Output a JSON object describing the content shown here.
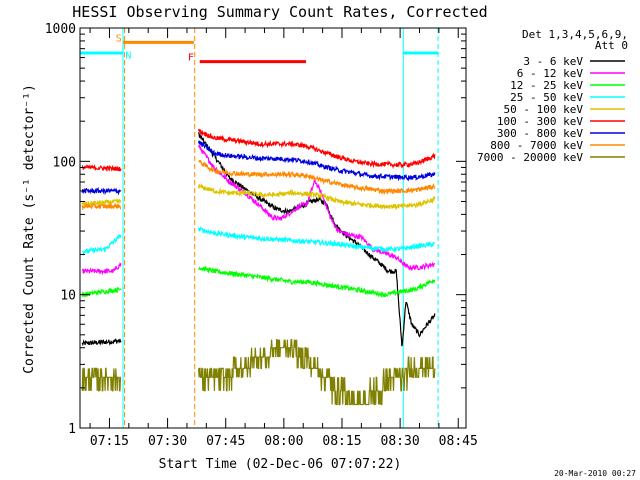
{
  "chart_data": {
    "type": "line",
    "title": "HESSI Observing Summary Count Rates, Corrected",
    "xlabel": "Start Time (02-Dec-06 07:07:22)",
    "ylabel": "Corrected Count Rate (s⁻¹ detector⁻¹)",
    "yscale": "log",
    "ylim": [
      1,
      1000
    ],
    "xlim": [
      427.4,
      527.0
    ],
    "x_unit": "minutes after 00:00 UT",
    "xticks": [
      {
        "v": 435,
        "label": "07:15"
      },
      {
        "v": 450,
        "label": "07:30"
      },
      {
        "v": 465,
        "label": "07:45"
      },
      {
        "v": 480,
        "label": "08:00"
      },
      {
        "v": 495,
        "label": "08:15"
      },
      {
        "v": 510,
        "label": "08:30"
      },
      {
        "v": 525,
        "label": "08:45"
      }
    ],
    "yticks": [
      {
        "v": 1,
        "label": "1"
      },
      {
        "v": 10,
        "label": "10"
      },
      {
        "v": 100,
        "label": "100"
      },
      {
        "v": 1000,
        "label": "1000"
      }
    ],
    "legend": {
      "header": [
        "Det 1,3,4,5,6,9,",
        "Att 0"
      ],
      "position": "right"
    },
    "timestamp": "20-Mar-2010 00:27",
    "gaps": [
      [
        438.5,
        438.5
      ],
      [
        439.0,
        457.0
      ]
    ],
    "series": [
      {
        "name": "3 - 6 keV",
        "color": "#000000",
        "points": [
          [
            428,
            4.3
          ],
          [
            438,
            4.5
          ],
          [
            457.4,
            null
          ],
          [
            458,
            160
          ],
          [
            462,
            110
          ],
          [
            466,
            75
          ],
          [
            470,
            62
          ],
          [
            474,
            52
          ],
          [
            478,
            44
          ],
          [
            481,
            42
          ],
          [
            484,
            45
          ],
          [
            487,
            50
          ],
          [
            489,
            52
          ],
          [
            491,
            48
          ],
          [
            493,
            34
          ],
          [
            496,
            28
          ],
          [
            499,
            24
          ],
          [
            502,
            20
          ],
          [
            505,
            17
          ],
          [
            507,
            15
          ],
          [
            509,
            15
          ],
          [
            510.5,
            4
          ],
          [
            511.5,
            9
          ],
          [
            513,
            6
          ],
          [
            515,
            5
          ],
          [
            517,
            6
          ],
          [
            519,
            7
          ]
        ]
      },
      {
        "name": "6 - 12 keV",
        "color": "#ff00ff",
        "points": [
          [
            428,
            15
          ],
          [
            436,
            15
          ],
          [
            438,
            17
          ],
          [
            457.4,
            null
          ],
          [
            458,
            130
          ],
          [
            462,
            90
          ],
          [
            466,
            70
          ],
          [
            470,
            58
          ],
          [
            474,
            46
          ],
          [
            477,
            38
          ],
          [
            479,
            37
          ],
          [
            481,
            40
          ],
          [
            484,
            46
          ],
          [
            486,
            48
          ],
          [
            488,
            72
          ],
          [
            490,
            55
          ],
          [
            492,
            38
          ],
          [
            494,
            30
          ],
          [
            497,
            28
          ],
          [
            500,
            27
          ],
          [
            503,
            22
          ],
          [
            507,
            20
          ],
          [
            509,
            19
          ],
          [
            512,
            16
          ],
          [
            515,
            16
          ],
          [
            519,
            17
          ]
        ]
      },
      {
        "name": "12 - 25 keV",
        "color": "#00ff00",
        "points": [
          [
            428,
            10
          ],
          [
            438,
            11
          ],
          [
            457.4,
            null
          ],
          [
            458,
            16
          ],
          [
            462,
            15
          ],
          [
            466,
            14.5
          ],
          [
            470,
            14
          ],
          [
            474,
            13.5
          ],
          [
            478,
            13
          ],
          [
            482,
            12.5
          ],
          [
            486,
            12.5
          ],
          [
            490,
            12
          ],
          [
            494,
            11.5
          ],
          [
            498,
            11
          ],
          [
            502,
            10.5
          ],
          [
            506,
            10
          ],
          [
            510,
            10.5
          ],
          [
            514,
            11
          ],
          [
            519,
            13
          ]
        ]
      },
      {
        "name": "25 - 50 keV",
        "color": "#00ffff",
        "points": [
          [
            428,
            21
          ],
          [
            434,
            22
          ],
          [
            438,
            28
          ],
          [
            457.4,
            null
          ],
          [
            458,
            31
          ],
          [
            462,
            29
          ],
          [
            466,
            28
          ],
          [
            470,
            27
          ],
          [
            474,
            26.5
          ],
          [
            478,
            26
          ],
          [
            482,
            25.5
          ],
          [
            486,
            25
          ],
          [
            490,
            24.5
          ],
          [
            494,
            24
          ],
          [
            498,
            23
          ],
          [
            502,
            22.5
          ],
          [
            506,
            22
          ],
          [
            510,
            22
          ],
          [
            514,
            23
          ],
          [
            519,
            24
          ]
        ]
      },
      {
        "name": "50 - 100 keV",
        "color": "#ddc400",
        "points": [
          [
            428,
            48
          ],
          [
            438,
            50
          ],
          [
            457.4,
            null
          ],
          [
            458,
            65
          ],
          [
            462,
            60
          ],
          [
            466,
            58
          ],
          [
            470,
            58
          ],
          [
            474,
            56
          ],
          [
            478,
            56
          ],
          [
            482,
            58
          ],
          [
            486,
            57
          ],
          [
            490,
            55
          ],
          [
            494,
            50
          ],
          [
            498,
            48
          ],
          [
            502,
            47
          ],
          [
            506,
            46
          ],
          [
            510,
            46
          ],
          [
            514,
            47
          ],
          [
            519,
            52
          ]
        ]
      },
      {
        "name": "100 - 300 keV",
        "color": "#ff0000",
        "points": [
          [
            428,
            90
          ],
          [
            438,
            88
          ],
          [
            457.4,
            null
          ],
          [
            458,
            170
          ],
          [
            462,
            150
          ],
          [
            466,
            145
          ],
          [
            470,
            140
          ],
          [
            474,
            135
          ],
          [
            478,
            135
          ],
          [
            482,
            135
          ],
          [
            486,
            130
          ],
          [
            490,
            118
          ],
          [
            494,
            108
          ],
          [
            498,
            100
          ],
          [
            502,
            96
          ],
          [
            506,
            95
          ],
          [
            510,
            94
          ],
          [
            514,
            96
          ],
          [
            519,
            110
          ]
        ]
      },
      {
        "name": "300 - 800 keV",
        "color": "#0000dd",
        "points": [
          [
            428,
            60
          ],
          [
            438,
            60
          ],
          [
            457.4,
            null
          ],
          [
            458,
            140
          ],
          [
            462,
            115
          ],
          [
            466,
            110
          ],
          [
            470,
            108
          ],
          [
            474,
            105
          ],
          [
            478,
            105
          ],
          [
            482,
            103
          ],
          [
            486,
            100
          ],
          [
            490,
            92
          ],
          [
            494,
            86
          ],
          [
            498,
            82
          ],
          [
            502,
            78
          ],
          [
            506,
            77
          ],
          [
            510,
            76
          ],
          [
            514,
            76
          ],
          [
            519,
            80
          ]
        ]
      },
      {
        "name": "800 - 7000 keV",
        "color": "#ff8800",
        "points": [
          [
            428,
            46
          ],
          [
            438,
            46
          ],
          [
            457.4,
            null
          ],
          [
            458,
            100
          ],
          [
            462,
            85
          ],
          [
            466,
            82
          ],
          [
            470,
            80
          ],
          [
            474,
            80
          ],
          [
            478,
            80
          ],
          [
            482,
            80
          ],
          [
            486,
            78
          ],
          [
            490,
            72
          ],
          [
            494,
            68
          ],
          [
            498,
            64
          ],
          [
            502,
            62
          ],
          [
            506,
            60
          ],
          [
            510,
            60
          ],
          [
            514,
            61
          ],
          [
            519,
            65
          ]
        ]
      },
      {
        "name": "7000 - 20000 keV",
        "color": "#808000",
        "points": [
          [
            428,
            2.5
          ],
          [
            438,
            2.4
          ],
          [
            457.4,
            null
          ],
          [
            458,
            2.6
          ],
          [
            462,
            2.4
          ],
          [
            466,
            2.5
          ],
          [
            470,
            3.0
          ],
          [
            473,
            3.2
          ],
          [
            476,
            3.6
          ],
          [
            479,
            4.2
          ],
          [
            482,
            4.0
          ],
          [
            485,
            3.4
          ],
          [
            488,
            2.8
          ],
          [
            491,
            2.4
          ],
          [
            494,
            1.9
          ],
          [
            497,
            1.6
          ],
          [
            500,
            1.5
          ],
          [
            503,
            1.8
          ],
          [
            506,
            2.2
          ],
          [
            509,
            2.4
          ],
          [
            512,
            2.6
          ],
          [
            515,
            2.8
          ],
          [
            519,
            3.0
          ]
        ]
      }
    ],
    "markers": {
      "cyan_bars": [
        {
          "x0": 427.4,
          "x1": 438.5,
          "y": 650
        },
        {
          "x0": 510.8,
          "x1": 519.8,
          "y": 650
        }
      ],
      "orange_bar": {
        "x0": 438.5,
        "x1": 456.8,
        "y": 780
      },
      "red_bar": {
        "x0": 458.3,
        "x1": 485.7,
        "y": 560
      },
      "labels": [
        {
          "text": "S",
          "x": 437.4,
          "y": 790,
          "color": "#ff8800"
        },
        {
          "text": "N",
          "x": 439.9,
          "y": 590,
          "color": "#00ffff"
        },
        {
          "text": "F",
          "x": 456.0,
          "y": 570,
          "color": "#ff0000"
        }
      ],
      "vlines": [
        {
          "x": 427.4,
          "color": "#00ffff",
          "style": "solid"
        },
        {
          "x": 438.5,
          "color": "#00ffff",
          "style": "solid"
        },
        {
          "x": 438.9,
          "color": "#ff8800",
          "style": "dashed"
        },
        {
          "x": 457.0,
          "color": "#ff8800",
          "style": "dashed"
        },
        {
          "x": 510.8,
          "color": "#00ffff",
          "style": "solid"
        },
        {
          "x": 519.8,
          "color": "#00ffff",
          "style": "dashed"
        }
      ]
    }
  }
}
